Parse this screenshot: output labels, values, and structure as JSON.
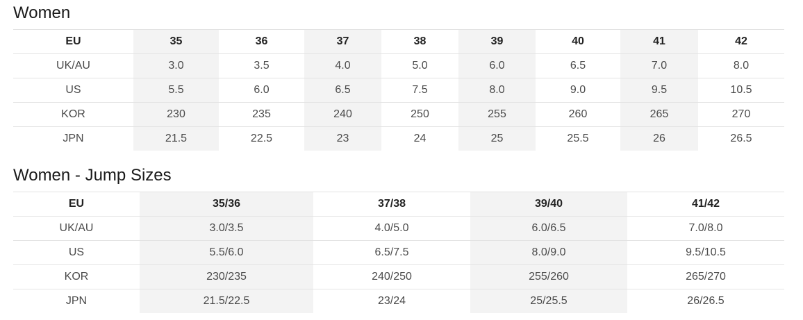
{
  "women": {
    "title": "Women",
    "header": [
      "EU",
      "35",
      "36",
      "37",
      "38",
      "39",
      "40",
      "41",
      "42"
    ],
    "rows": [
      [
        "UK/AU",
        "3.0",
        "3.5",
        "4.0",
        "5.0",
        "6.0",
        "6.5",
        "7.0",
        "8.0"
      ],
      [
        "US",
        "5.5",
        "6.0",
        "6.5",
        "7.5",
        "8.0",
        "9.0",
        "9.5",
        "10.5"
      ],
      [
        "KOR",
        "230",
        "235",
        "240",
        "250",
        "255",
        "260",
        "265",
        "270"
      ],
      [
        "JPN",
        "21.5",
        "22.5",
        "23",
        "24",
        "25",
        "25.5",
        "26",
        "26.5"
      ]
    ]
  },
  "jump": {
    "title": "Women - Jump Sizes",
    "header": [
      "EU",
      "35/36",
      "37/38",
      "39/40",
      "41/42"
    ],
    "rows": [
      [
        "UK/AU",
        "3.0/3.5",
        "4.0/5.0",
        "6.0/6.5",
        "7.0/8.0"
      ],
      [
        "US",
        "5.5/6.0",
        "6.5/7.5",
        "8.0/9.0",
        "9.5/10.5"
      ],
      [
        "KOR",
        "230/235",
        "240/250",
        "255/260",
        "265/270"
      ],
      [
        "JPN",
        "21.5/22.5",
        "23/24",
        "25/25.5",
        "26/26.5"
      ]
    ]
  },
  "colors": {
    "shade": "#f3f3f3",
    "border": "#e3e3e3",
    "title_text": "#1a1a1a",
    "cell_text": "#4a4a4a"
  }
}
